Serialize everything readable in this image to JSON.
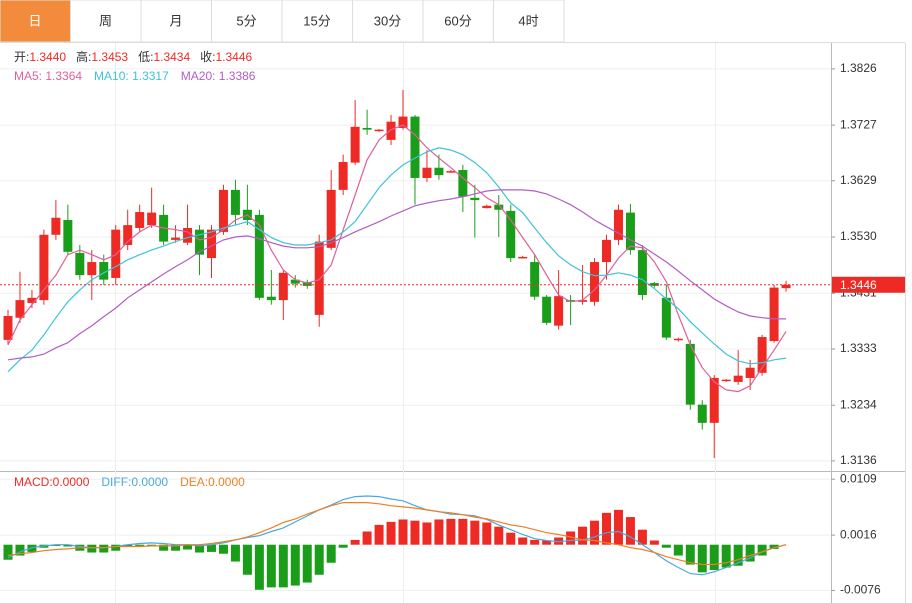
{
  "tabs": [
    "日",
    "周",
    "月",
    "5分",
    "15分",
    "30分",
    "60分",
    "4时"
  ],
  "active_tab": 0,
  "active_tab_color": "#f28b3c",
  "chart_data": [
    {
      "type": "candlestick",
      "up_color": "#ee2a24",
      "down_color": "#1a9e1a",
      "ohlc_header": [
        {
          "label": "开:",
          "text": "1.3440"
        },
        {
          "label": "高:",
          "text": "1.3453"
        },
        {
          "label": "低:",
          "text": "1.3434"
        },
        {
          "label": "收:",
          "text": "1.3446"
        }
      ],
      "open": [
        1.3349,
        1.3388,
        1.3414,
        1.3419,
        1.3534,
        1.356,
        1.3502,
        1.3463,
        1.3486,
        1.3458,
        1.3516,
        1.3546,
        1.3551,
        1.3569,
        1.3525,
        1.352,
        1.3543,
        1.3493,
        1.3539,
        1.3613,
        1.3578,
        1.3569,
        1.3425,
        1.3419,
        1.3455,
        1.3451,
        1.3393,
        1.3511,
        1.3613,
        1.3661,
        1.3722,
        1.3717,
        1.3701,
        1.3722,
        1.3742,
        1.3634,
        1.3652,
        1.3645,
        1.3648,
        1.3599,
        1.3581,
        1.3587,
        1.3576,
        1.3493,
        1.3486,
        1.3425,
        1.3374,
        1.3419,
        1.3416,
        1.3416,
        1.3486,
        1.3525,
        1.3573,
        1.3507,
        1.3449,
        1.3423,
        1.3349,
        1.3342,
        1.3235,
        1.3203,
        1.3277,
        1.3275,
        1.3282,
        1.3291,
        1.3347,
        1.344
      ],
      "high": [
        1.3402,
        1.3469,
        1.3437,
        1.3543,
        1.3595,
        1.3587,
        1.3516,
        1.3507,
        1.3499,
        1.3551,
        1.3578,
        1.3587,
        1.3617,
        1.3587,
        1.3551,
        1.3587,
        1.3551,
        1.3551,
        1.3622,
        1.3631,
        1.3622,
        1.3578,
        1.3472,
        1.3472,
        1.3463,
        1.3455,
        1.3534,
        1.3648,
        1.3675,
        1.3771,
        1.3754,
        1.372,
        1.3745,
        1.3789,
        1.3745,
        1.3683,
        1.3675,
        1.3648,
        1.3657,
        1.3622,
        1.3587,
        1.3604,
        1.3587,
        1.3497,
        1.3499,
        1.3428,
        1.3472,
        1.3428,
        1.3481,
        1.3493,
        1.3534,
        1.3587,
        1.3588,
        1.3516,
        1.3451,
        1.3446,
        1.3353,
        1.3349,
        1.3243,
        1.3287,
        1.328,
        1.3331,
        1.3314,
        1.3358,
        1.3446,
        1.3453
      ],
      "low": [
        1.334,
        1.3379,
        1.3405,
        1.3411,
        1.3525,
        1.3499,
        1.3455,
        1.3419,
        1.3446,
        1.3446,
        1.3507,
        1.3539,
        1.3546,
        1.3516,
        1.352,
        1.3516,
        1.3463,
        1.3458,
        1.3534,
        1.3551,
        1.3551,
        1.3419,
        1.3411,
        1.3384,
        1.3441,
        1.3439,
        1.3372,
        1.3507,
        1.3604,
        1.3657,
        1.371,
        1.3715,
        1.3692,
        1.3719,
        1.3587,
        1.3627,
        1.3631,
        1.3643,
        1.3574,
        1.3529,
        1.358,
        1.353,
        1.3486,
        1.3492,
        1.3419,
        1.3375,
        1.3367,
        1.3375,
        1.3411,
        1.3409,
        1.3455,
        1.3516,
        1.3499,
        1.3419,
        1.3441,
        1.3349,
        1.3346,
        1.3226,
        1.3191,
        1.3141,
        1.3275,
        1.327,
        1.3261,
        1.3286,
        1.3344,
        1.3434
      ],
      "close": [
        1.3391,
        1.3419,
        1.3423,
        1.3534,
        1.3564,
        1.3504,
        1.3463,
        1.3486,
        1.3455,
        1.3543,
        1.3551,
        1.3574,
        1.3573,
        1.3522,
        1.3529,
        1.3546,
        1.3499,
        1.3543,
        1.3613,
        1.3569,
        1.356,
        1.3423,
        1.3419,
        1.3467,
        1.3448,
        1.3444,
        1.3522,
        1.3613,
        1.3662,
        1.3724,
        1.3719,
        1.3719,
        1.3733,
        1.3742,
        1.3634,
        1.3652,
        1.3639,
        1.3646,
        1.3601,
        1.3595,
        1.3585,
        1.3578,
        1.3493,
        1.3495,
        1.3425,
        1.3379,
        1.3426,
        1.3416,
        1.3419,
        1.3486,
        1.3525,
        1.3578,
        1.3507,
        1.3428,
        1.3444,
        1.3353,
        1.3351,
        1.3235,
        1.3203,
        1.3282,
        1.3279,
        1.3286,
        1.33,
        1.3354,
        1.3441,
        1.3446
      ],
      "series": [
        {
          "label": "MA5: 1.3364",
          "color": "#e0609a",
          "values": [
            1.334,
            1.3384,
            1.3411,
            1.3437,
            1.3463,
            1.3499,
            1.3507,
            1.3499,
            1.349,
            1.3499,
            1.3522,
            1.3539,
            1.3551,
            1.3546,
            1.3543,
            1.3539,
            1.3525,
            1.3529,
            1.3543,
            1.356,
            1.3569,
            1.3551,
            1.3507,
            1.3472,
            1.3455,
            1.3449,
            1.3455,
            1.3481,
            1.3543,
            1.3604,
            1.3666,
            1.3701,
            1.3719,
            1.3727,
            1.371,
            1.3687,
            1.3669,
            1.3652,
            1.3634,
            1.3617,
            1.3599,
            1.3587,
            1.356,
            1.3529,
            1.3499,
            1.3463,
            1.3428,
            1.3416,
            1.3419,
            1.3437,
            1.3463,
            1.3493,
            1.3514,
            1.3511,
            1.3486,
            1.3451,
            1.3393,
            1.334,
            1.33,
            1.3275,
            1.3261,
            1.3258,
            1.3268,
            1.33,
            1.3331,
            1.3364
          ]
        },
        {
          "label": "MA10: 1.3317",
          "color": "#3cc4d8",
          "values": [
            1.3293,
            1.3314,
            1.3331,
            1.3358,
            1.3388,
            1.3416,
            1.3437,
            1.3455,
            1.3467,
            1.3478,
            1.349,
            1.3499,
            1.3507,
            1.3514,
            1.3522,
            1.3529,
            1.3534,
            1.3539,
            1.3546,
            1.3551,
            1.3557,
            1.3543,
            1.3529,
            1.352,
            1.3516,
            1.3516,
            1.352,
            1.3525,
            1.3539,
            1.3557,
            1.3587,
            1.3617,
            1.3639,
            1.3657,
            1.3669,
            1.368,
            1.3687,
            1.3683,
            1.3675,
            1.3661,
            1.3643,
            1.3618,
            1.359,
            1.3573,
            1.3546,
            1.352,
            1.3497,
            1.3481,
            1.3469,
            1.3462,
            1.3463,
            1.3467,
            1.3463,
            1.3455,
            1.3439,
            1.3421,
            1.3404,
            1.3381,
            1.3361,
            1.3342,
            1.3324,
            1.3312,
            1.3307,
            1.3309,
            1.3314,
            1.3317
          ]
        },
        {
          "label": "MA20: 1.3386",
          "color": "#b45cc4",
          "values": [
            1.3314,
            1.3317,
            1.3319,
            1.3324,
            1.3335,
            1.3344,
            1.336,
            1.3374,
            1.339,
            1.3405,
            1.3423,
            1.3437,
            1.3451,
            1.3465,
            1.3478,
            1.349,
            1.3504,
            1.3514,
            1.3525,
            1.353,
            1.3532,
            1.3527,
            1.352,
            1.3514,
            1.3511,
            1.3511,
            1.3513,
            1.352,
            1.3529,
            1.3539,
            1.3548,
            1.3557,
            1.3567,
            1.3576,
            1.3585,
            1.359,
            1.3594,
            1.3597,
            1.3601,
            1.3606,
            1.3611,
            1.3613,
            1.3613,
            1.3613,
            1.3611,
            1.3606,
            1.3597,
            1.3587,
            1.3574,
            1.356,
            1.3548,
            1.3537,
            1.3525,
            1.3514,
            1.35,
            1.3486,
            1.347,
            1.3453,
            1.3437,
            1.3421,
            1.3409,
            1.3398,
            1.3391,
            1.3388,
            1.3386,
            1.3386
          ]
        }
      ],
      "last_price": 1.3446,
      "last_price_color": "#ee2a24",
      "ylim": [
        1.312,
        1.3868
      ],
      "yticks": [
        1.3826,
        1.3727,
        1.3629,
        {
          "value": 1.353,
          "label": "1.3530"
        },
        1.3431,
        1.3333,
        1.3234,
        1.3136
      ],
      "grid": true
    },
    {
      "type": "macd",
      "up_color": "#ee2a24",
      "down_color": "#1a9e1a",
      "histogram": {
        "label": "MACD:0.0000",
        "color": "#ee2a24",
        "values": [
          -0.0025,
          -0.0018,
          -0.0012,
          -0.0005,
          -0.0002,
          -0.0003,
          -0.001,
          -0.0013,
          -0.0013,
          -0.001,
          -0.0003,
          -0.0002,
          -0.0003,
          -0.001,
          -0.001,
          -0.0008,
          -0.0013,
          -0.0012,
          -0.0015,
          -0.0028,
          -0.005,
          -0.0075,
          -0.0071,
          -0.0071,
          -0.0068,
          -0.0063,
          -0.005,
          -0.003,
          -0.0005,
          0.0008,
          0.0022,
          0.0033,
          0.0038,
          0.0042,
          0.004,
          0.0037,
          0.0042,
          0.0043,
          0.0043,
          0.004,
          0.0037,
          0.003,
          0.002,
          0.0012,
          0.0008,
          0.0007,
          0.0012,
          0.0022,
          0.003,
          0.004,
          0.0053,
          0.0058,
          0.0046,
          0.0025,
          0.0007,
          -0.0005,
          -0.0018,
          -0.0033,
          -0.0046,
          -0.0042,
          -0.0038,
          -0.0035,
          -0.0028,
          -0.0018,
          -0.0007,
          0
        ]
      },
      "series": [
        {
          "label": "DIFF:0.0000",
          "color": "#4aa8e0",
          "values": [
            -0.0022,
            -0.0012,
            -0.0005,
            -0.0002,
            0,
            0,
            -0.0003,
            -0.0005,
            -0.0005,
            -0.0003,
            0,
            0.0002,
            0.0003,
            0.0002,
            0,
            0,
            -0.0002,
            0,
            0.0003,
            0.0008,
            0.0012,
            0.0015,
            0.0022,
            0.0028,
            0.0038,
            0.0048,
            0.0058,
            0.0066,
            0.0075,
            0.008,
            0.0081,
            0.008,
            0.0076,
            0.0073,
            0.0065,
            0.0058,
            0.0055,
            0.0051,
            0.005,
            0.0048,
            0.0042,
            0.0033,
            0.0025,
            0.0017,
            0.001,
            0.0007,
            0.0005,
            0.0007,
            0.0008,
            0.0013,
            0.002,
            0.0022,
            0.0013,
            0,
            -0.0013,
            -0.0027,
            -0.0038,
            -0.0048,
            -0.005,
            -0.0045,
            -0.0038,
            -0.003,
            -0.0022,
            -0.0012,
            -0.0005,
            0
          ]
        },
        {
          "label": "DEA:0.0000",
          "color": "#f07f22",
          "values": [
            -0.0018,
            -0.0015,
            -0.0013,
            -0.001,
            -0.0008,
            -0.0007,
            -0.0005,
            -0.0005,
            -0.0005,
            -0.0003,
            -0.0003,
            -0.0003,
            -0.0002,
            -0.0002,
            -0.0002,
            0,
            0,
            0.0002,
            0.0005,
            0.0008,
            0.0013,
            0.002,
            0.0028,
            0.0037,
            0.0043,
            0.0051,
            0.0058,
            0.0065,
            0.007,
            0.007,
            0.007,
            0.0068,
            0.0065,
            0.0063,
            0.0061,
            0.0058,
            0.0055,
            0.0053,
            0.005,
            0.0046,
            0.0043,
            0.0038,
            0.0033,
            0.003,
            0.0025,
            0.002,
            0.0017,
            0.0013,
            0.0008,
            0.0007,
            0.0003,
            0,
            -0.0005,
            -0.0008,
            -0.0013,
            -0.002,
            -0.0025,
            -0.003,
            -0.0033,
            -0.0033,
            -0.003,
            -0.0025,
            -0.0018,
            -0.0012,
            -0.0005,
            0
          ]
        }
      ],
      "ylim": [
        -0.0092,
        0.0121
      ],
      "yticks": [
        0.0109,
        0.0016,
        -0.0076
      ],
      "grid": true
    }
  ]
}
